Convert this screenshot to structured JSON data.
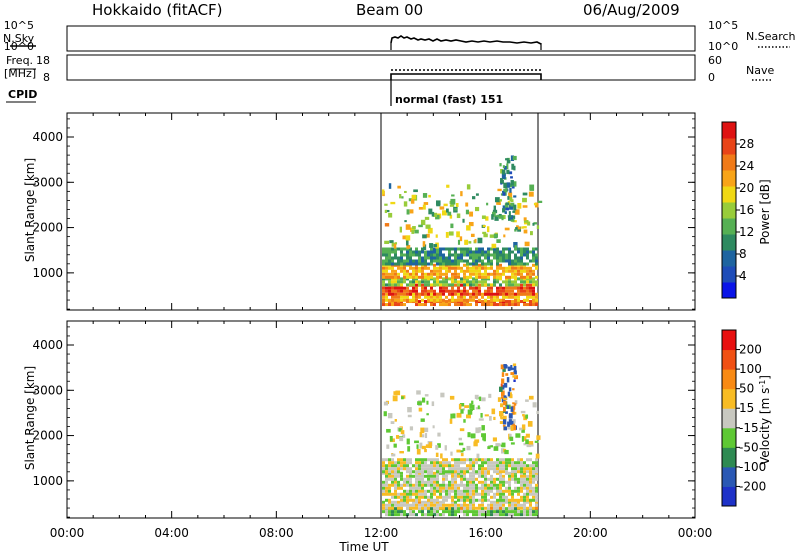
{
  "header": {
    "station": "Hokkaido (fitACF)",
    "beam": "Beam 00",
    "date": "06/Aug/2009"
  },
  "top_panels": {
    "nsky": {
      "label": "N.Sky",
      "ticks": [
        "10^5",
        "10^0"
      ]
    },
    "nsearch": {
      "label": "N.Search",
      "ticks": [
        "10^5",
        "10^0"
      ]
    },
    "freq": {
      "label_line1": "Freq.",
      "label_line2": "[MHz]",
      "ticks": [
        "18",
        "8"
      ]
    },
    "nave": {
      "label": "Nave",
      "ticks": [
        "60",
        "0"
      ]
    },
    "cpid": {
      "label": "CPID",
      "mode_text": "normal (fast) 151"
    }
  },
  "chart_data": [
    {
      "type": "heatmap",
      "title": "",
      "xlabel": "",
      "ylabel": "Slant Range [km]",
      "y_ticks": [
        "4000",
        "3000",
        "2000",
        "1000"
      ],
      "xlim": [
        0,
        24
      ],
      "ylim": [
        180,
        4530
      ],
      "data_interval_hours": [
        12,
        18
      ],
      "colorbar": {
        "label": "Power [dB]",
        "range": [
          0,
          30
        ],
        "ticks": [
          "28",
          "24",
          "20",
          "16",
          "12",
          "8",
          "4"
        ],
        "colors": [
          "#0a14e8",
          "#1e4cb8",
          "#1e64a0",
          "#2e8a60",
          "#56b054",
          "#98cc3a",
          "#f0d814",
          "#f8a418",
          "#f07a18",
          "#e84418",
          "#de1212"
        ]
      },
      "bands": [
        {
          "range_km": [
            280,
            400
          ],
          "value_db": 24
        },
        {
          "range_km": [
            400,
            560
          ],
          "value_db": 20
        },
        {
          "range_km": [
            560,
            760
          ],
          "value_db": 26
        },
        {
          "range_km": [
            760,
            900
          ],
          "value_db": 14
        },
        {
          "range_km": [
            900,
            1200
          ],
          "value_db": 20
        },
        {
          "range_km": [
            1200,
            1560
          ],
          "value_db": 10
        }
      ]
    },
    {
      "type": "heatmap",
      "title": "",
      "xlabel": "Time UT",
      "ylabel": "Slant Range [km]",
      "y_ticks": [
        "4000",
        "3000",
        "2000",
        "1000"
      ],
      "x_ticks": [
        "00:00",
        "04:00",
        "08:00",
        "12:00",
        "16:00",
        "20:00",
        "00:00"
      ],
      "xlim": [
        0,
        24
      ],
      "ylim": [
        180,
        4530
      ],
      "data_interval_hours": [
        12,
        18
      ],
      "colorbar": {
        "label": "Velocity [m s-1]",
        "range": [
          -250,
          250
        ],
        "ticks": [
          "200",
          "100",
          "50",
          "15",
          "-15",
          "-50",
          "-100",
          "-200"
        ],
        "colors": [
          "#1e32c8",
          "#2a58b4",
          "#2e8a52",
          "#5ec834",
          "#c8c8c0",
          "#f8bc24",
          "#f88a14",
          "#f05014",
          "#e81010"
        ]
      },
      "bands": [
        {
          "range_km": [
            280,
            420
          ],
          "value_ms": -50
        },
        {
          "range_km": [
            420,
            560
          ],
          "value_ms": 30
        },
        {
          "range_km": [
            560,
            1200
          ],
          "value_ms": 0
        },
        {
          "range_km": [
            1200,
            1500
          ],
          "value_ms": 0
        }
      ]
    }
  ]
}
